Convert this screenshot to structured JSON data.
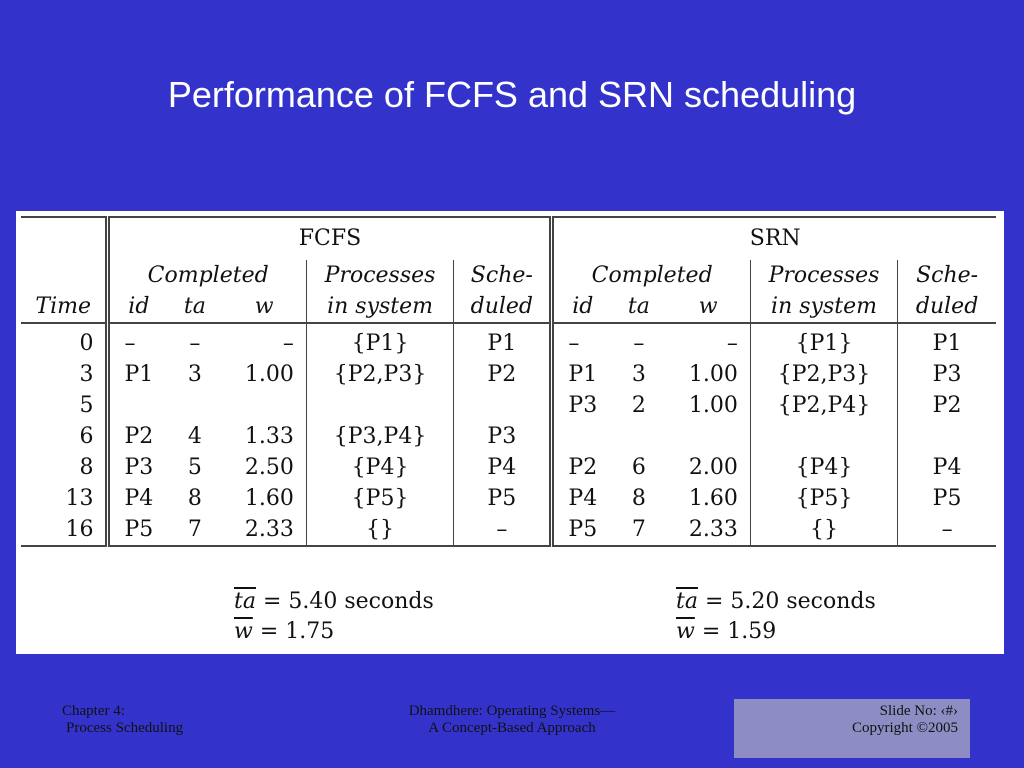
{
  "slide": {
    "title": "Performance of FCFS and SRN scheduling"
  },
  "table": {
    "col_time": "Time",
    "fcfs_label": "FCFS",
    "srn_label": "SRN",
    "completed": "Completed",
    "processes_line1": "Processes",
    "processes_line2": "in system",
    "sched_line1": "Sche-",
    "sched_line2": "duled",
    "id": "id",
    "ta": "ta",
    "w": "w",
    "rows": [
      {
        "time": "0",
        "f_id": "–",
        "f_ta": "–",
        "f_w": "–",
        "f_proc": "{P1}",
        "f_sched": "P1",
        "s_id": "–",
        "s_ta": "–",
        "s_w": "–",
        "s_proc": "{P1}",
        "s_sched": "P1"
      },
      {
        "time": "3",
        "f_id": "P1",
        "f_ta": "3",
        "f_w": "1.00",
        "f_proc": "{P2,P3}",
        "f_sched": "P2",
        "s_id": "P1",
        "s_ta": "3",
        "s_w": "1.00",
        "s_proc": "{P2,P3}",
        "s_sched": "P3"
      },
      {
        "time": "5",
        "f_id": "",
        "f_ta": "",
        "f_w": "",
        "f_proc": "",
        "f_sched": "",
        "s_id": "P3",
        "s_ta": "2",
        "s_w": "1.00",
        "s_proc": "{P2,P4}",
        "s_sched": "P2"
      },
      {
        "time": "6",
        "f_id": "P2",
        "f_ta": "4",
        "f_w": "1.33",
        "f_proc": "{P3,P4}",
        "f_sched": "P3",
        "s_id": "",
        "s_ta": "",
        "s_w": "",
        "s_proc": "",
        "s_sched": ""
      },
      {
        "time": "8",
        "f_id": "P3",
        "f_ta": "5",
        "f_w": "2.50",
        "f_proc": "{P4}",
        "f_sched": "P4",
        "s_id": "P2",
        "s_ta": "6",
        "s_w": "2.00",
        "s_proc": "{P4}",
        "s_sched": "P4"
      },
      {
        "time": "13",
        "f_id": "P4",
        "f_ta": "8",
        "f_w": "1.60",
        "f_proc": "{P5}",
        "f_sched": "P5",
        "s_id": "P4",
        "s_ta": "8",
        "s_w": "1.60",
        "s_proc": "{P5}",
        "s_sched": "P5"
      },
      {
        "time": "16",
        "f_id": "P5",
        "f_ta": "7",
        "f_w": "2.33",
        "f_proc": "{}",
        "f_sched": "–",
        "s_id": "P5",
        "s_ta": "7",
        "s_w": "2.33",
        "s_proc": "{}",
        "s_sched": "–"
      }
    ]
  },
  "summary": {
    "fcfs_ta_symbol": "ta",
    "fcfs_ta_value": " = 5.40 seconds",
    "fcfs_w_symbol": "w",
    "fcfs_w_value": " = 1.75",
    "srn_ta_symbol": "ta",
    "srn_ta_value": " = 5.20 seconds",
    "srn_w_symbol": "w",
    "srn_w_value": " = 1.59"
  },
  "footer": {
    "left_line1": "Chapter 4:",
    "left_line2": "Process Scheduling",
    "center_line1": "Dhamdhere: Operating Systems—",
    "center_line2": "A Concept-Based Approach",
    "right_line1": "Slide No: ‹#›",
    "right_line2": "Copyright ©2005"
  },
  "colors": {
    "background": "#3333cc",
    "footer_box": "#8d8dc4",
    "table_bg": "#ffffff"
  }
}
